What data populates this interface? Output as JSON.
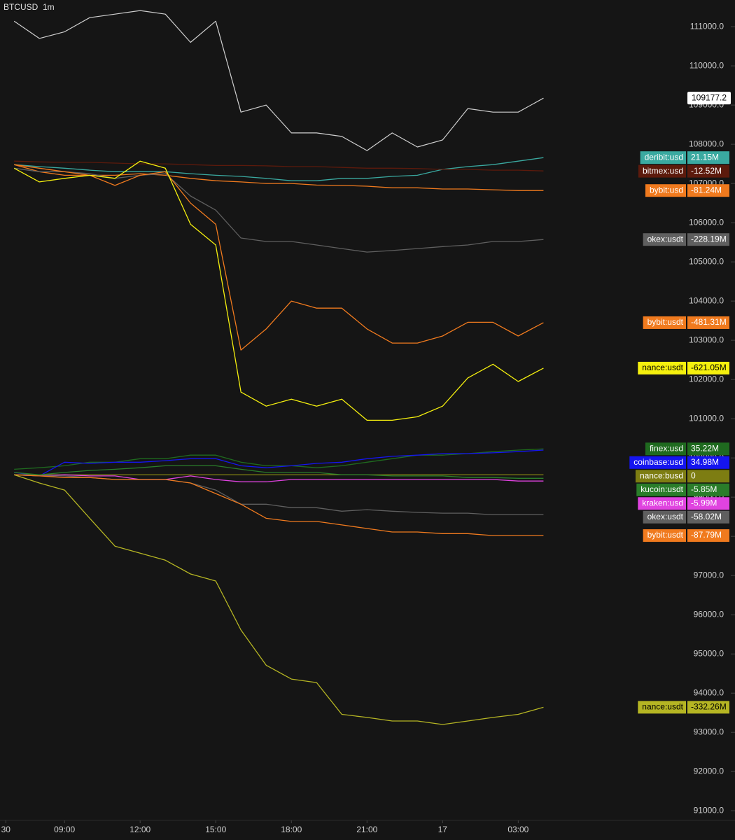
{
  "chart_data": {
    "type": "line",
    "interval": "1m",
    "x": [
      7,
      8,
      9,
      10,
      11,
      12,
      13,
      14,
      15,
      16,
      17,
      18,
      19,
      20,
      21,
      22,
      23,
      24,
      25,
      26,
      27,
      28
    ],
    "xlim": [
      6.44,
      33.1
    ],
    "xticks": [
      {
        "value": 6.67,
        "label": "30"
      },
      {
        "value": 9,
        "label": "09:00"
      },
      {
        "value": 12,
        "label": "12:00"
      },
      {
        "value": 15,
        "label": "15:00"
      },
      {
        "value": 18,
        "label": "18:00"
      },
      {
        "value": 21,
        "label": "21:00"
      },
      {
        "value": 24,
        "label": "17"
      },
      {
        "value": 27,
        "label": "03:00"
      }
    ],
    "ylim": [
      90790,
      111680
    ],
    "yticks": [
      {
        "value": 91000,
        "label": "91000.0"
      },
      {
        "value": 92000,
        "label": "92000.0"
      },
      {
        "value": 93000,
        "label": "93000.0"
      },
      {
        "value": 94000,
        "label": "94000.0"
      },
      {
        "value": 95000,
        "label": "95000.0"
      },
      {
        "value": 96000,
        "label": "96000.0"
      },
      {
        "value": 97000,
        "label": "97000.0"
      },
      {
        "value": 98000,
        "label": "98000.0"
      },
      {
        "value": 99000,
        "label": "99000.0"
      },
      {
        "value": 100000,
        "label": "100000.0"
      },
      {
        "value": 101000,
        "label": "101000.0"
      },
      {
        "value": 102000,
        "label": "102000.0"
      },
      {
        "value": 103000,
        "label": "103000.0"
      },
      {
        "value": 104000,
        "label": "104000.0"
      },
      {
        "value": 105000,
        "label": "105000.0"
      },
      {
        "value": 106000,
        "label": "106000.0"
      },
      {
        "value": 107000,
        "label": "107000.0"
      },
      {
        "value": 108000,
        "label": "108000.0"
      },
      {
        "value": 109000,
        "label": "109000.0"
      },
      {
        "value": 110000,
        "label": "110000.0"
      },
      {
        "value": 111000,
        "label": "111000.0"
      }
    ],
    "series": [
      {
        "name": "BTCUSD",
        "color": "#cfcfcf",
        "values": [
          111140,
          110700,
          110870,
          111230,
          111320,
          111410,
          111320,
          110600,
          111140,
          108820,
          109000,
          108290,
          108290,
          108200,
          107840,
          108290,
          107930,
          108110,
          108910,
          108820,
          108820,
          109177.2
        ]
      },
      {
        "name": "deribit:usd",
        "color": "#3aa9a0",
        "last_label": "21.15M",
        "values": [
          107480,
          107430,
          107390,
          107340,
          107300,
          107300,
          107300,
          107250,
          107210,
          107180,
          107130,
          107070,
          107070,
          107130,
          107130,
          107180,
          107210,
          107360,
          107430,
          107480,
          107570,
          107660
        ]
      },
      {
        "name": "bitmex:usd",
        "color": "#5c1a0c",
        "last_label": "-12.52M",
        "values": [
          107570,
          107550,
          107540,
          107540,
          107520,
          107500,
          107500,
          107480,
          107460,
          107460,
          107450,
          107430,
          107430,
          107410,
          107390,
          107390,
          107380,
          107360,
          107360,
          107340,
          107340,
          107320
        ]
      },
      {
        "name": "bybit:usd",
        "color": "#f07a1e",
        "last_label": "-81.24M",
        "values": [
          107480,
          107300,
          107210,
          107210,
          107210,
          107250,
          107210,
          107130,
          107070,
          107040,
          107000,
          107000,
          106960,
          106950,
          106930,
          106890,
          106890,
          106860,
          106860,
          106840,
          106820,
          106820
        ]
      },
      {
        "name": "okex:usdt",
        "color": "#5f5f5f",
        "last_label": "-228.19M",
        "values": [
          107390,
          107300,
          107300,
          107250,
          107130,
          107210,
          107250,
          106680,
          106320,
          105610,
          105520,
          105520,
          105430,
          105340,
          105250,
          105290,
          105340,
          105390,
          105430,
          105520,
          105520,
          105570
        ]
      },
      {
        "name": "bybit:usdt",
        "color": "#f07a1e",
        "last_label": "-481.31M",
        "values": [
          107480,
          107390,
          107300,
          107210,
          106950,
          107210,
          107300,
          106500,
          105960,
          102750,
          103290,
          104000,
          103820,
          103820,
          103290,
          102930,
          102930,
          103110,
          103460,
          103460,
          103110,
          103450
        ]
      },
      {
        "name": "nance:usdt",
        "color": "#f5f00e",
        "last_label": "-621.05M",
        "values": [
          107390,
          107040,
          107130,
          107210,
          107130,
          107570,
          107390,
          105960,
          105430,
          101680,
          101320,
          101500,
          101320,
          101500,
          100960,
          100960,
          101050,
          101320,
          102040,
          102390,
          101950,
          102290
        ]
      },
      {
        "name": "finex:usd",
        "color": "#1f6a1f",
        "last_label": "35.22M",
        "values": [
          99710,
          99750,
          99800,
          99890,
          99890,
          99980,
          99980,
          100070,
          100070,
          99890,
          99800,
          99800,
          99750,
          99800,
          99890,
          99980,
          100070,
          100070,
          100110,
          100160,
          100200,
          100230
        ]
      },
      {
        "name": "coinbase:usd",
        "color": "#1515f0",
        "last_label": "34.98M",
        "values": [
          99630,
          99540,
          99890,
          99860,
          99890,
          99890,
          99930,
          99980,
          99980,
          99800,
          99750,
          99800,
          99860,
          99890,
          99980,
          100040,
          100070,
          100110,
          100110,
          100130,
          100160,
          100200
        ]
      },
      {
        "name": "nance:busd",
        "color": "#7d7d12",
        "last_label": "0",
        "values": [
          99570,
          99570,
          99570,
          99570,
          99570,
          99570,
          99570,
          99570,
          99570,
          99570,
          99570,
          99570,
          99570,
          99570,
          99570,
          99570,
          99570,
          99570,
          99570,
          99570,
          99570,
          99570
        ]
      },
      {
        "name": "kucoin:usdt",
        "color": "#2a7d2a",
        "last_label": "-5.85M",
        "values": [
          99630,
          99570,
          99630,
          99680,
          99710,
          99750,
          99800,
          99800,
          99800,
          99710,
          99630,
          99630,
          99630,
          99570,
          99570,
          99540,
          99540,
          99540,
          99500,
          99500,
          99480,
          99480
        ]
      },
      {
        "name": "kraken:usd",
        "color": "#e043e0",
        "last_label": "-5.99M",
        "values": [
          99570,
          99540,
          99570,
          99540,
          99540,
          99450,
          99450,
          99540,
          99450,
          99390,
          99390,
          99450,
          99450,
          99450,
          99450,
          99450,
          99450,
          99450,
          99450,
          99450,
          99410,
          99410
        ]
      },
      {
        "name": "okex:usdt",
        "color": "#5f5f5f",
        "last_label": "-58.02M",
        "values": [
          99570,
          99540,
          99540,
          99500,
          99450,
          99450,
          99450,
          99360,
          99180,
          98820,
          98820,
          98730,
          98730,
          98640,
          98680,
          98640,
          98610,
          98590,
          98590,
          98550,
          98550,
          98550
        ]
      },
      {
        "name": "bybit:usdt",
        "color": "#f07a1e",
        "last_label": "-87.79M",
        "values": [
          99570,
          99540,
          99500,
          99500,
          99450,
          99450,
          99450,
          99360,
          99090,
          98820,
          98460,
          98380,
          98380,
          98290,
          98200,
          98110,
          98110,
          98070,
          98070,
          98020,
          98020,
          98020
        ]
      },
      {
        "name": "nance:usdt",
        "color": "#b5b523",
        "last_label": "-332.26M",
        "values": [
          99570,
          99360,
          99180,
          98460,
          97750,
          97570,
          97390,
          97040,
          96860,
          95610,
          94710,
          94360,
          94270,
          93460,
          93380,
          93290,
          93290,
          93200,
          93290,
          93380,
          93460,
          93640
        ]
      }
    ]
  }
}
